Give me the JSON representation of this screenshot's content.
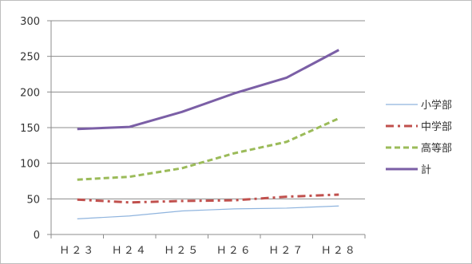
{
  "chart_data": {
    "type": "line",
    "categories": [
      "Ｈ２３",
      "Ｈ２４",
      "Ｈ２５",
      "Ｈ２６",
      "Ｈ２７",
      "Ｈ２８"
    ],
    "ylim": [
      0,
      300
    ],
    "yticks": [
      0,
      50,
      100,
      150,
      200,
      250,
      300
    ],
    "grid": true,
    "legend_position": "right",
    "series": [
      {
        "name": "小学部",
        "values": [
          22,
          26,
          33,
          36,
          37,
          40
        ],
        "color": "#8fb4de",
        "style": "solid"
      },
      {
        "name": "中学部",
        "values": [
          49,
          45,
          47,
          48,
          53,
          56
        ],
        "color": "#c0504d",
        "style": "dashdot"
      },
      {
        "name": "高等部",
        "values": [
          77,
          81,
          93,
          114,
          130,
          163
        ],
        "color": "#9bbb59",
        "style": "dashed"
      },
      {
        "name": "計",
        "values": [
          148,
          151,
          172,
          198,
          220,
          259
        ],
        "color": "#7b5fa6",
        "style": "solid-thick"
      }
    ]
  }
}
